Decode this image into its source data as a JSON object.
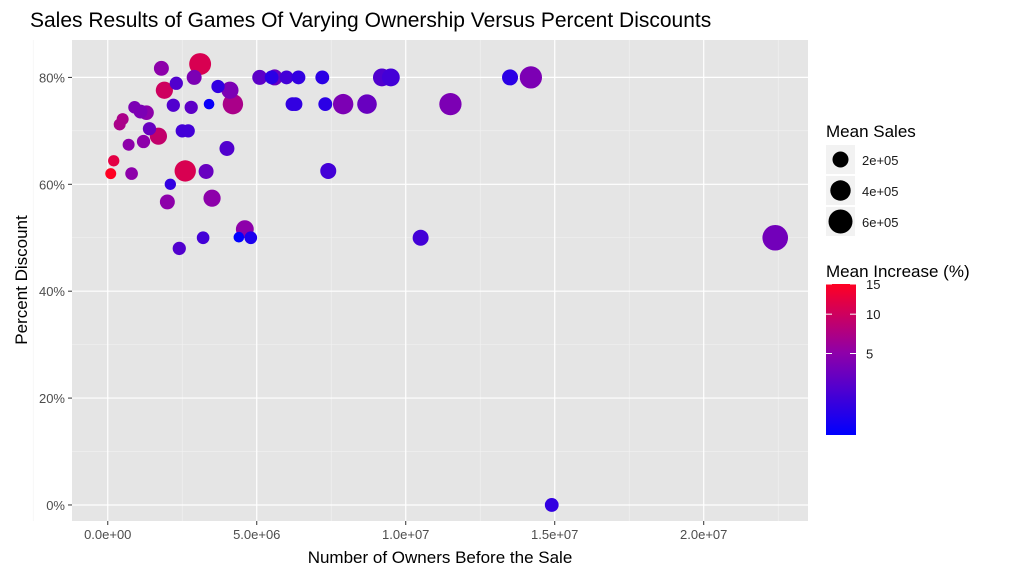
{
  "chart_data": {
    "type": "scatter",
    "title": "Sales Results of Games Of Varying Ownership Versus Percent Discounts",
    "xlabel": "Number of Owners Before the Sale",
    "ylabel": "Percent Discount",
    "xlim": [
      -1200000,
      23500000
    ],
    "ylim": [
      -3,
      87
    ],
    "x_ticks": [
      0,
      5000000,
      10000000,
      15000000,
      20000000
    ],
    "x_tick_labels": [
      "0.0e+00",
      "5.0e+06",
      "1.0e+07",
      "1.5e+07",
      "2.0e+07"
    ],
    "y_ticks": [
      0,
      20,
      40,
      60,
      80
    ],
    "y_tick_labels": [
      "0%",
      "20%",
      "40%",
      "60%",
      "80%"
    ],
    "grid": true,
    "size_legend": {
      "title": "Mean Sales",
      "values": [
        200000,
        400000,
        600000
      ],
      "labels": [
        "2e+05",
        "4e+05",
        "6e+05"
      ]
    },
    "color_legend": {
      "title": "Mean Increase (%)",
      "ticks": [
        5,
        10,
        15
      ],
      "labels": [
        "5",
        "10",
        "15"
      ],
      "range": [
        0.1,
        15
      ],
      "transform": "sqrt",
      "low_color": "#0000FF",
      "mid_color": "#9000A8",
      "high_color": "#FF0022"
    },
    "legend_position": "right",
    "point_fields": [
      "owners",
      "discount_pct",
      "mean_sales",
      "mean_increase_pct"
    ],
    "points": [
      [
        100000,
        62,
        30000,
        15
      ],
      [
        200000,
        64.4,
        40000,
        12
      ],
      [
        400000,
        71.2,
        60000,
        7
      ],
      [
        500000,
        72.2,
        60000,
        7
      ],
      [
        700000,
        67.4,
        60000,
        5
      ],
      [
        800000,
        62,
        80000,
        5
      ],
      [
        900000,
        74.4,
        80000,
        4
      ],
      [
        1100000,
        73.6,
        120000,
        4
      ],
      [
        1200000,
        68,
        100000,
        5
      ],
      [
        1300000,
        73.4,
        150000,
        5
      ],
      [
        1400000,
        70.4,
        100000,
        3
      ],
      [
        1700000,
        69,
        250000,
        9
      ],
      [
        1800000,
        81.7,
        160000,
        5
      ],
      [
        1900000,
        77.6,
        250000,
        10
      ],
      [
        2000000,
        56.7,
        160000,
        5
      ],
      [
        2100000,
        60,
        40000,
        1
      ],
      [
        2200000,
        74.8,
        100000,
        2
      ],
      [
        2300000,
        78.9,
        100000,
        2
      ],
      [
        2400000,
        48,
        100000,
        2
      ],
      [
        2500000,
        70,
        100000,
        1.5
      ],
      [
        2600000,
        62.5,
        450000,
        11
      ],
      [
        2700000,
        70,
        100000,
        1.5
      ],
      [
        2800000,
        74.4,
        100000,
        2.5
      ],
      [
        2900000,
        80,
        160000,
        4
      ],
      [
        3100000,
        82.5,
        480000,
        11
      ],
      [
        3200000,
        50,
        80000,
        1.5
      ],
      [
        3300000,
        62.4,
        160000,
        3
      ],
      [
        3400000,
        75,
        20000,
        0.2
      ],
      [
        3500000,
        57.4,
        250000,
        5
      ],
      [
        3700000,
        78.3,
        100000,
        1
      ],
      [
        4000000,
        66.7,
        160000,
        2
      ],
      [
        4100000,
        77.6,
        250000,
        4
      ],
      [
        4200000,
        75,
        400000,
        7
      ],
      [
        4400000,
        50.1,
        20000,
        0.1
      ],
      [
        4600000,
        51.6,
        280000,
        5
      ],
      [
        4800000,
        50,
        80000,
        0.5
      ],
      [
        5100000,
        80,
        160000,
        2.5
      ],
      [
        5500000,
        80,
        120000,
        0.8
      ],
      [
        5600000,
        80,
        200000,
        3
      ],
      [
        6000000,
        80,
        120000,
        1.5
      ],
      [
        6400000,
        80,
        120000,
        1
      ],
      [
        6200000,
        75,
        120000,
        1
      ],
      [
        6300000,
        75,
        120000,
        1
      ],
      [
        7200000,
        80,
        120000,
        0.8
      ],
      [
        7300000,
        75,
        120000,
        0.8
      ],
      [
        7400000,
        62.5,
        200000,
        1.5
      ],
      [
        7900000,
        75,
        400000,
        4
      ],
      [
        8700000,
        75,
        360000,
        3
      ],
      [
        9200000,
        80,
        280000,
        2
      ],
      [
        9500000,
        80,
        280000,
        1.5
      ],
      [
        10500000,
        50,
        200000,
        1.5
      ],
      [
        11500000,
        75,
        500000,
        4
      ],
      [
        13500000,
        80,
        200000,
        0.8
      ],
      [
        14200000,
        80,
        500000,
        4
      ],
      [
        14900000,
        0,
        120000,
        1
      ],
      [
        22400000,
        50,
        700000,
        3.5
      ]
    ]
  }
}
